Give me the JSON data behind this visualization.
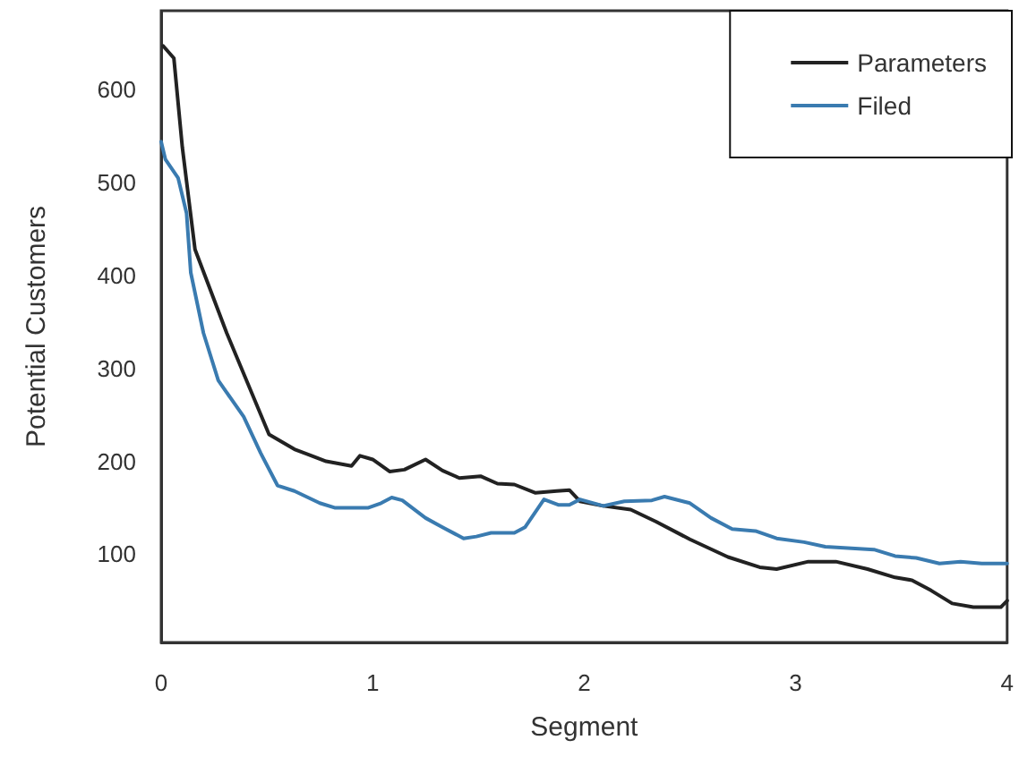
{
  "chart_data": {
    "type": "line",
    "xlabel": "Segment",
    "ylabel": "Potential Customers",
    "xlim": [
      0,
      4
    ],
    "xticks": [
      0,
      1,
      2,
      3,
      4
    ],
    "ylim": [
      5,
      685
    ],
    "yticks": [
      100,
      200,
      300,
      400,
      500,
      600
    ],
    "grid": false,
    "legend": "top right",
    "marker": "none",
    "line_style": "solid",
    "series": [
      {
        "name": "Parameters",
        "color": "#222222",
        "x": [
          0.01,
          0.06,
          0.1,
          0.16,
          0.31,
          0.51,
          0.63,
          0.78,
          0.9,
          0.94,
          1.0,
          1.08,
          1.15,
          1.25,
          1.33,
          1.41,
          1.51,
          1.59,
          1.67,
          1.77,
          1.87,
          1.93,
          1.98,
          2.09,
          2.22,
          2.34,
          2.5,
          2.68,
          2.83,
          2.91,
          3.06,
          3.19,
          3.34,
          3.47,
          3.55,
          3.64,
          3.74,
          3.84,
          3.97,
          4.0
        ],
        "values": [
          647,
          634,
          538,
          428,
          338,
          229,
          213,
          200,
          195,
          206,
          202,
          189,
          191,
          202,
          190,
          182,
          184,
          176,
          175,
          166,
          168,
          169,
          157,
          152,
          148,
          135,
          116,
          97,
          86,
          84,
          92,
          92,
          84,
          75,
          72,
          61,
          47,
          43,
          43,
          50
        ]
      },
      {
        "name": "Filed",
        "color": "#3a7bb0",
        "x": [
          0,
          0.02,
          0.08,
          0.12,
          0.14,
          0.2,
          0.27,
          0.39,
          0.47,
          0.55,
          0.63,
          0.75,
          0.82,
          0.98,
          1.04,
          1.09,
          1.14,
          1.25,
          1.33,
          1.43,
          1.49,
          1.56,
          1.67,
          1.72,
          1.81,
          1.88,
          1.93,
          1.98,
          2.09,
          2.19,
          2.32,
          2.38,
          2.5,
          2.6,
          2.7,
          2.81,
          2.91,
          3.04,
          3.14,
          3.37,
          3.47,
          3.57,
          3.68,
          3.78,
          3.88,
          4.0
        ],
        "values": [
          544,
          525,
          505,
          467,
          403,
          338,
          287,
          248,
          209,
          174,
          168,
          155,
          150,
          150,
          155,
          161,
          158,
          139,
          129,
          117,
          119,
          123,
          123,
          129,
          159,
          153,
          153,
          159,
          152,
          157,
          158,
          162,
          155,
          139,
          127,
          125,
          117,
          113,
          108,
          105,
          98,
          96,
          90,
          92,
          90,
          90
        ]
      }
    ]
  }
}
